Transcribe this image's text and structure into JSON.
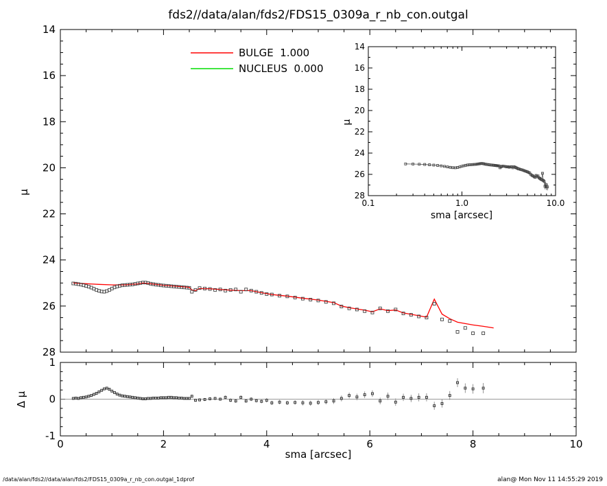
{
  "title": "fds2//data/alan/fds2/FDS15_0309a_r_nb_con.outgal",
  "footer": {
    "left": "/data/alan/fds2//data/alan/fds2/FDS15_0309a_r_nb_con.outgal_1dprof",
    "right": "alan@  Mon Nov 11 14:55:29 2019"
  },
  "colors": {
    "bulge": "#ff0000",
    "nucleus": "#00dd00",
    "data_marker": "#3f3f3f",
    "error_bar": "#888888",
    "zero_line": "#777777",
    "axis": "#000000"
  },
  "legend": [
    {
      "label": "BULGE  1.000",
      "color_key": "bulge"
    },
    {
      "label": "NUCLEUS  0.000",
      "color_key": "nucleus"
    }
  ],
  "chart_data": [
    {
      "type": "scatter",
      "name": "surface-brightness-profile",
      "xlabel": "",
      "ylabel": "μ",
      "xlim": [
        0,
        10
      ],
      "ylim": [
        28,
        14
      ],
      "xticks": [
        0,
        2,
        4,
        6,
        8,
        10
      ],
      "yticks": [
        14,
        16,
        18,
        20,
        22,
        24,
        26,
        28
      ],
      "series": [
        {
          "name": "data",
          "marker": "open-square",
          "points": [
            [
              0.25,
              25.02
            ],
            [
              0.3,
              25.03
            ],
            [
              0.35,
              25.05
            ],
            [
              0.4,
              25.07
            ],
            [
              0.45,
              25.1
            ],
            [
              0.5,
              25.13
            ],
            [
              0.55,
              25.16
            ],
            [
              0.6,
              25.2
            ],
            [
              0.65,
              25.25
            ],
            [
              0.7,
              25.3
            ],
            [
              0.75,
              25.34
            ],
            [
              0.8,
              25.37
            ],
            [
              0.85,
              25.38
            ],
            [
              0.9,
              25.35
            ],
            [
              0.95,
              25.3
            ],
            [
              1.0,
              25.24
            ],
            [
              1.05,
              25.19
            ],
            [
              1.1,
              25.15
            ],
            [
              1.15,
              25.12
            ],
            [
              1.2,
              25.1
            ],
            [
              1.25,
              25.09
            ],
            [
              1.3,
              25.08
            ],
            [
              1.35,
              25.07
            ],
            [
              1.4,
              25.06
            ],
            [
              1.45,
              25.04
            ],
            [
              1.5,
              25.02
            ],
            [
              1.55,
              25.0
            ],
            [
              1.6,
              24.98
            ],
            [
              1.65,
              24.98
            ],
            [
              1.7,
              25.0
            ],
            [
              1.75,
              25.03
            ],
            [
              1.8,
              25.05
            ],
            [
              1.85,
              25.07
            ],
            [
              1.9,
              25.08
            ],
            [
              1.95,
              25.1
            ],
            [
              2.0,
              25.11
            ],
            [
              2.05,
              25.12
            ],
            [
              2.1,
              25.13
            ],
            [
              2.15,
              25.14
            ],
            [
              2.2,
              25.15
            ],
            [
              2.25,
              25.16
            ],
            [
              2.3,
              25.17
            ],
            [
              2.35,
              25.18
            ],
            [
              2.4,
              25.19
            ],
            [
              2.45,
              25.2
            ],
            [
              2.5,
              25.21
            ],
            [
              2.55,
              25.38
            ],
            [
              2.62,
              25.3
            ],
            [
              2.7,
              25.22
            ],
            [
              2.8,
              25.24
            ],
            [
              2.9,
              25.26
            ],
            [
              3.0,
              25.3
            ],
            [
              3.1,
              25.28
            ],
            [
              3.2,
              25.33
            ],
            [
              3.3,
              25.3
            ],
            [
              3.4,
              25.28
            ],
            [
              3.5,
              25.38
            ],
            [
              3.6,
              25.28
            ],
            [
              3.7,
              25.33
            ],
            [
              3.8,
              25.38
            ],
            [
              3.9,
              25.43
            ],
            [
              4.0,
              25.48
            ],
            [
              4.1,
              25.5
            ],
            [
              4.25,
              25.55
            ],
            [
              4.4,
              25.58
            ],
            [
              4.55,
              25.63
            ],
            [
              4.7,
              25.68
            ],
            [
              4.85,
              25.72
            ],
            [
              5.0,
              25.76
            ],
            [
              5.15,
              25.82
            ],
            [
              5.3,
              25.88,
              0.08
            ],
            [
              5.45,
              26.02,
              0.08
            ],
            [
              5.6,
              26.1,
              0.09
            ],
            [
              5.75,
              26.15,
              0.1
            ],
            [
              5.9,
              26.22,
              0.1
            ],
            [
              6.05,
              26.28,
              0.11
            ],
            [
              6.2,
              26.1,
              0.11
            ],
            [
              6.35,
              26.22,
              0.12
            ],
            [
              6.5,
              26.15,
              0.12
            ],
            [
              6.65,
              26.32,
              0.13
            ],
            [
              6.8,
              26.38,
              0.14
            ],
            [
              6.95,
              26.45,
              0.15
            ],
            [
              7.1,
              26.5,
              0.16
            ],
            [
              7.25,
              25.9,
              0.12
            ],
            [
              7.4,
              26.58,
              0.18
            ],
            [
              7.55,
              26.65,
              0.2
            ],
            [
              7.7,
              27.12,
              0.28
            ],
            [
              7.85,
              26.95,
              0.25
            ],
            [
              8.0,
              27.18,
              0.3
            ],
            [
              8.2,
              27.18,
              0.32
            ]
          ]
        },
        {
          "name": "BULGE",
          "style": "line",
          "color": "#ff0000",
          "amplitude": "1.000",
          "points": [
            [
              0.25,
              25.0
            ],
            [
              0.5,
              25.03
            ],
            [
              0.75,
              25.06
            ],
            [
              1.0,
              25.08
            ],
            [
              1.25,
              25.08
            ],
            [
              1.5,
              25.04
            ],
            [
              1.6,
              25.0
            ],
            [
              1.7,
              25.02
            ],
            [
              2.0,
              25.1
            ],
            [
              2.3,
              25.15
            ],
            [
              2.5,
              25.19
            ],
            [
              2.55,
              25.3
            ],
            [
              2.62,
              25.33
            ],
            [
              2.7,
              25.24
            ],
            [
              2.9,
              25.25
            ],
            [
              3.1,
              25.28
            ],
            [
              3.3,
              25.31
            ],
            [
              3.5,
              25.33
            ],
            [
              3.7,
              25.33
            ],
            [
              3.9,
              25.42
            ],
            [
              4.1,
              25.5
            ],
            [
              4.4,
              25.57
            ],
            [
              4.7,
              25.66
            ],
            [
              5.0,
              25.74
            ],
            [
              5.3,
              25.85
            ],
            [
              5.45,
              26.0
            ],
            [
              5.6,
              26.07
            ],
            [
              5.9,
              26.18
            ],
            [
              6.05,
              26.25
            ],
            [
              6.2,
              26.12
            ],
            [
              6.35,
              26.2
            ],
            [
              6.5,
              26.17
            ],
            [
              6.65,
              26.3
            ],
            [
              6.9,
              26.4
            ],
            [
              7.1,
              26.48
            ],
            [
              7.25,
              25.7
            ],
            [
              7.4,
              26.35
            ],
            [
              7.55,
              26.55
            ],
            [
              7.7,
              26.7
            ],
            [
              8.0,
              26.82
            ],
            [
              8.2,
              26.88
            ],
            [
              8.4,
              26.95
            ]
          ]
        },
        {
          "name": "NUCLEUS",
          "style": "line",
          "color": "#00dd00",
          "amplitude": "0.000",
          "points": []
        }
      ]
    },
    {
      "type": "scatter",
      "name": "inset-log-profile",
      "xscale": "log",
      "xlabel": "sma [arcsec]",
      "ylabel": "μ",
      "xlim": [
        0.1,
        10
      ],
      "ylim": [
        28,
        14
      ],
      "xtick_values": [
        0.1,
        1,
        10
      ],
      "xtick_labels": [
        "0.1",
        "1.0",
        "10.0"
      ],
      "yticks": [
        14,
        16,
        18,
        20,
        22,
        24,
        26,
        28
      ],
      "series_from": "chart_data.0.series.0"
    },
    {
      "type": "scatter",
      "name": "residual-panel",
      "xlabel": "sma [arcsec]",
      "ylabel": "Δ μ",
      "xlim": [
        0,
        10
      ],
      "ylim": [
        -1,
        1
      ],
      "xticks": [
        0,
        2,
        4,
        6,
        8,
        10
      ],
      "yticks": [
        -1,
        0,
        1
      ],
      "points_format": [
        "sma",
        "dmu",
        "err"
      ],
      "points": [
        [
          0.25,
          0.02,
          0.02
        ],
        [
          0.3,
          0.03,
          0.02
        ],
        [
          0.35,
          0.02,
          0.02
        ],
        [
          0.4,
          0.04,
          0.02
        ],
        [
          0.45,
          0.05,
          0.02
        ],
        [
          0.5,
          0.06,
          0.02
        ],
        [
          0.55,
          0.08,
          0.02
        ],
        [
          0.6,
          0.1,
          0.02
        ],
        [
          0.65,
          0.13,
          0.02
        ],
        [
          0.7,
          0.16,
          0.02
        ],
        [
          0.75,
          0.2,
          0.02
        ],
        [
          0.8,
          0.24,
          0.02
        ],
        [
          0.85,
          0.28,
          0.02
        ],
        [
          0.9,
          0.3,
          0.02
        ],
        [
          0.95,
          0.27,
          0.02
        ],
        [
          1.0,
          0.22,
          0.02
        ],
        [
          1.05,
          0.18,
          0.02
        ],
        [
          1.1,
          0.14,
          0.02
        ],
        [
          1.15,
          0.11,
          0.02
        ],
        [
          1.2,
          0.09,
          0.02
        ],
        [
          1.25,
          0.08,
          0.02
        ],
        [
          1.3,
          0.07,
          0.02
        ],
        [
          1.35,
          0.06,
          0.02
        ],
        [
          1.4,
          0.05,
          0.02
        ],
        [
          1.45,
          0.04,
          0.02
        ],
        [
          1.5,
          0.03,
          0.02
        ],
        [
          1.55,
          0.02,
          0.02
        ],
        [
          1.6,
          0.01,
          0.02
        ],
        [
          1.65,
          0.01,
          0.02
        ],
        [
          1.7,
          0.02,
          0.02
        ],
        [
          1.75,
          0.02,
          0.02
        ],
        [
          1.8,
          0.03,
          0.02
        ],
        [
          1.85,
          0.03,
          0.02
        ],
        [
          1.9,
          0.03,
          0.02
        ],
        [
          1.95,
          0.04,
          0.02
        ],
        [
          2.0,
          0.04,
          0.02
        ],
        [
          2.05,
          0.04,
          0.02
        ],
        [
          2.1,
          0.05,
          0.02
        ],
        [
          2.15,
          0.05,
          0.02
        ],
        [
          2.2,
          0.04,
          0.02
        ],
        [
          2.25,
          0.04,
          0.02
        ],
        [
          2.3,
          0.03,
          0.02
        ],
        [
          2.35,
          0.03,
          0.02
        ],
        [
          2.4,
          0.02,
          0.02
        ],
        [
          2.45,
          0.02,
          0.02
        ],
        [
          2.5,
          0.02,
          0.02
        ],
        [
          2.55,
          0.08,
          0.04
        ],
        [
          2.62,
          -0.03,
          0.04
        ],
        [
          2.7,
          -0.02,
          0.04
        ],
        [
          2.8,
          -0.01,
          0.04
        ],
        [
          2.9,
          0.01,
          0.04
        ],
        [
          3.0,
          0.02,
          0.04
        ],
        [
          3.1,
          0.0,
          0.04
        ],
        [
          3.2,
          0.05,
          0.05
        ],
        [
          3.3,
          -0.03,
          0.05
        ],
        [
          3.4,
          -0.05,
          0.05
        ],
        [
          3.5,
          0.05,
          0.05
        ],
        [
          3.6,
          -0.05,
          0.05
        ],
        [
          3.7,
          0.0,
          0.05
        ],
        [
          3.8,
          -0.04,
          0.05
        ],
        [
          3.9,
          -0.06,
          0.05
        ],
        [
          4.0,
          -0.03,
          0.06
        ],
        [
          4.1,
          -0.1,
          0.06
        ],
        [
          4.25,
          -0.08,
          0.06
        ],
        [
          4.4,
          -0.1,
          0.06
        ],
        [
          4.55,
          -0.09,
          0.06
        ],
        [
          4.7,
          -0.1,
          0.07
        ],
        [
          4.85,
          -0.11,
          0.07
        ],
        [
          5.0,
          -0.09,
          0.07
        ],
        [
          5.15,
          -0.07,
          0.07
        ],
        [
          5.3,
          -0.05,
          0.08
        ],
        [
          5.45,
          0.02,
          0.08
        ],
        [
          5.6,
          0.1,
          0.08
        ],
        [
          5.75,
          0.06,
          0.09
        ],
        [
          5.9,
          0.12,
          0.09
        ],
        [
          6.05,
          0.15,
          0.09
        ],
        [
          6.2,
          -0.05,
          0.09
        ],
        [
          6.35,
          0.08,
          0.1
        ],
        [
          6.5,
          -0.08,
          0.1
        ],
        [
          6.65,
          0.05,
          0.1
        ],
        [
          6.8,
          0.02,
          0.1
        ],
        [
          6.95,
          0.05,
          0.11
        ],
        [
          7.1,
          0.05,
          0.11
        ],
        [
          7.25,
          -0.18,
          0.11
        ],
        [
          7.4,
          -0.12,
          0.11
        ],
        [
          7.55,
          0.1,
          0.12
        ],
        [
          7.7,
          0.45,
          0.12
        ],
        [
          7.85,
          0.3,
          0.13
        ],
        [
          8.0,
          0.28,
          0.13
        ],
        [
          8.2,
          0.3,
          0.14
        ]
      ]
    }
  ]
}
